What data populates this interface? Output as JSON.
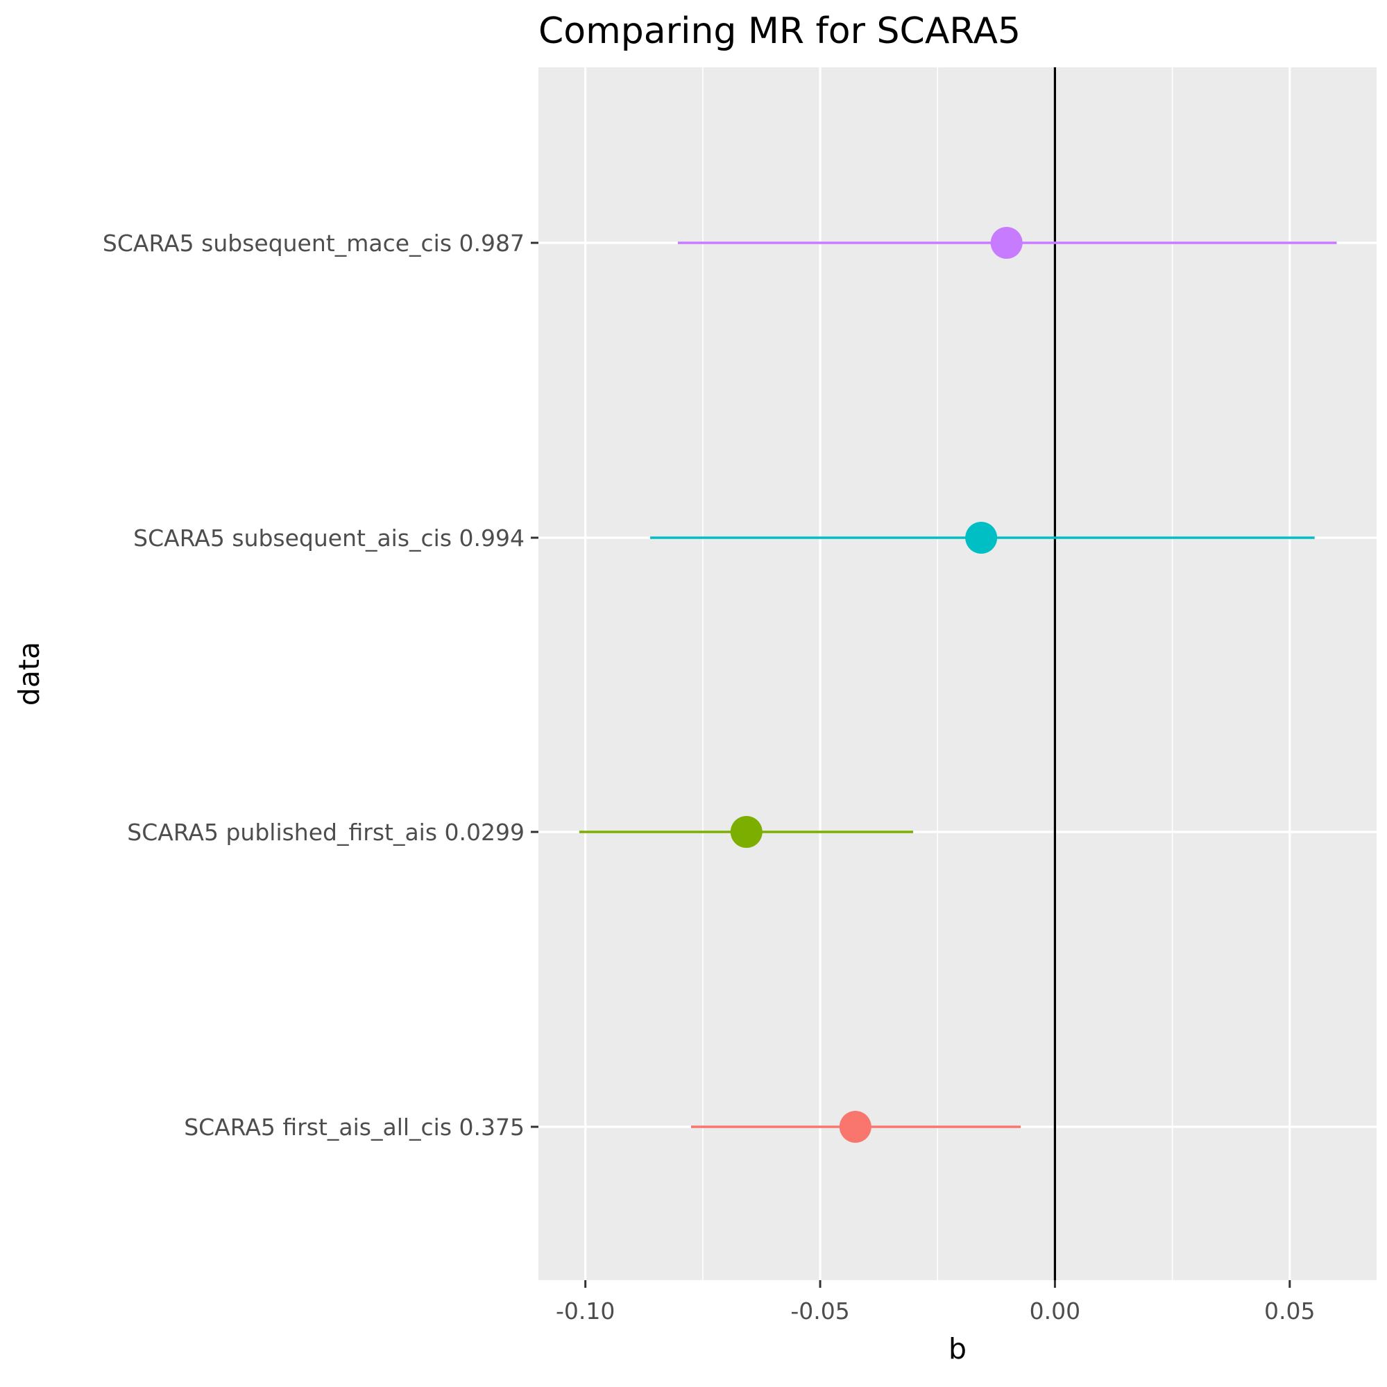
{
  "chart_data": {
    "type": "forest",
    "title": "Comparing MR for SCARA5",
    "xlabel": "b",
    "ylabel": "data",
    "xlim": [
      -0.11,
      0.0685
    ],
    "x_ticks": [
      -0.1,
      -0.05,
      0.0,
      0.05
    ],
    "x_tick_labels": [
      "-0.10",
      "-0.05",
      "0.00",
      "0.05"
    ],
    "reference_line": 0,
    "grid": true,
    "rows": [
      {
        "label": "SCARA5 first_ais_all_cis 0.375",
        "b": -0.0425,
        "lo": -0.0775,
        "hi": -0.0073,
        "color": "#F8766D"
      },
      {
        "label": "SCARA5 published_first_ais 0.0299",
        "b": -0.0657,
        "lo": -0.1013,
        "hi": -0.0302,
        "color": "#7CAE00"
      },
      {
        "label": "SCARA5 subsequent_ais_cis 0.994",
        "b": -0.0157,
        "lo": -0.0862,
        "hi": 0.0553,
        "color": "#00BFC4"
      },
      {
        "label": "SCARA5 subsequent_mace_cis 0.987",
        "b": -0.0103,
        "lo": -0.0803,
        "hi": 0.06,
        "color": "#C77CFF"
      }
    ]
  }
}
